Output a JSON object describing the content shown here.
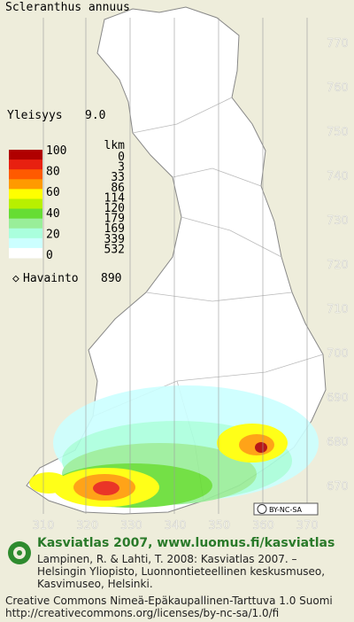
{
  "title": "Scleranthus annuus",
  "frequency": {
    "label": "Yleisyys",
    "value": "9.0"
  },
  "legend": {
    "scale_labels": [
      100,
      80,
      60,
      40,
      20,
      0
    ],
    "count_header": "lkm",
    "counts": [
      0,
      3,
      33,
      86,
      114,
      120,
      179,
      169,
      339,
      532
    ],
    "colors": [
      "#b00000",
      "#e82010",
      "#ff5a00",
      "#ff9a00",
      "#ffff00",
      "#b8f000",
      "#66dd33",
      "#99ee99",
      "#aaffdd",
      "#ccffff",
      "#ffffff"
    ]
  },
  "observations": {
    "label": "Havainto",
    "value": 890
  },
  "grid": {
    "y_labels": [
      770,
      760,
      750,
      740,
      730,
      720,
      710,
      700,
      690,
      680,
      670
    ],
    "x_labels": [
      310,
      320,
      330,
      340,
      350,
      360,
      370
    ]
  },
  "license_badge": "BY-NC-SA",
  "footer": {
    "heading": "Kasviatlas 2007, www.luomus.fi/kasviatlas",
    "citation": [
      "Lampinen, R. & Lahti, T. 2008: Kasviatlas 2007. –",
      "Helsingin Yliopisto, Luonnontieteellinen keskusmuseo,",
      "Kasvimuseo, Helsinki."
    ],
    "license": [
      "Creative Commons Nimeä-Epäkaupallinen-Tarttuva 1.0 Suomi",
      "http://creativecommons.org/licenses/by-nc-sa/1.0/fi"
    ]
  }
}
